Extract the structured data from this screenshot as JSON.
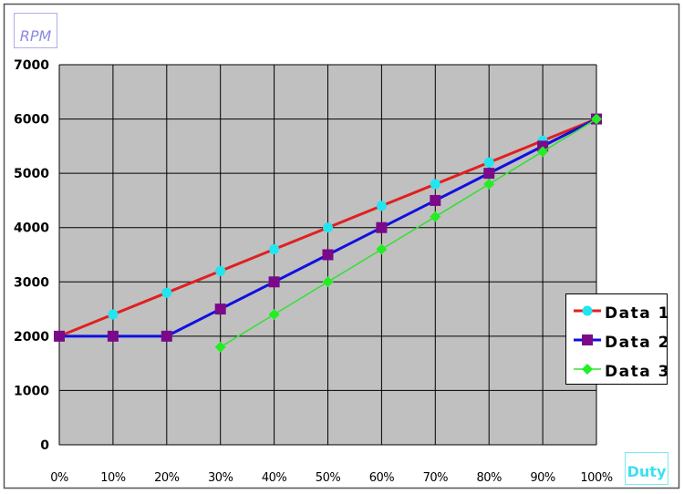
{
  "chart_data": {
    "type": "line",
    "ylabel": "RPM",
    "xlabel": "Duty",
    "categories": [
      "0%",
      "10%",
      "20%",
      "30%",
      "40%",
      "50%",
      "60%",
      "70%",
      "80%",
      "90%",
      "100%"
    ],
    "x": [
      0,
      10,
      20,
      30,
      40,
      50,
      60,
      70,
      80,
      90,
      100
    ],
    "ylim": [
      0,
      7000
    ],
    "yticks": [
      "0",
      "1000",
      "2000",
      "3000",
      "4000",
      "5000",
      "6000",
      "7000"
    ],
    "grid": true,
    "legend_position": "right",
    "plot_background": "#c0c0c0",
    "series": [
      {
        "name": "Data 1",
        "line_color": "#e02020",
        "marker_color": "#22e5f0",
        "marker": "circle",
        "values": [
          2000,
          2400,
          2800,
          3200,
          3600,
          4000,
          4400,
          4800,
          5200,
          5600,
          6000
        ]
      },
      {
        "name": "Data 2",
        "line_color": "#1010e0",
        "marker_color": "#7a0a8a",
        "marker": "square",
        "values": [
          2000,
          2000,
          2000,
          2500,
          3000,
          3500,
          4000,
          4500,
          5000,
          5500,
          6000
        ]
      },
      {
        "name": "Data 3",
        "line_color": "#33e033",
        "marker_color": "#22ee22",
        "marker": "diamond",
        "values": [
          null,
          null,
          null,
          1800,
          2400,
          3000,
          3600,
          4200,
          4800,
          5400,
          6000
        ]
      }
    ]
  }
}
